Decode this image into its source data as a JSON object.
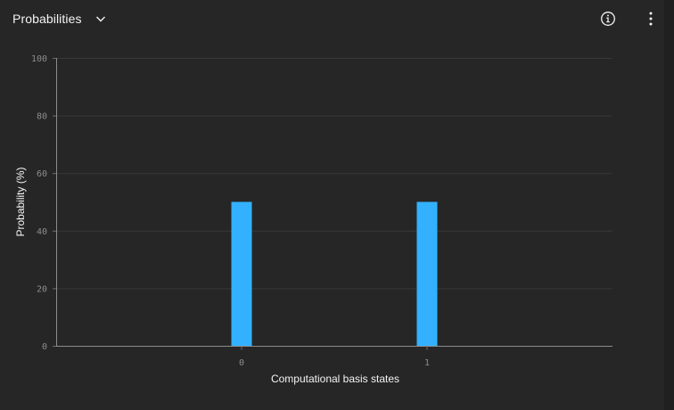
{
  "header": {
    "title": "Probabilities",
    "dropdown_icon": "chevron-down-icon",
    "info_icon": "information-icon",
    "menu_icon": "overflow-menu-vertical-icon"
  },
  "colors": {
    "background": "#262626",
    "bar": "#33b1ff",
    "grid": "#393939",
    "text": "#f4f4f4",
    "tick_text": "#8d8d8d"
  },
  "chart_data": {
    "type": "bar",
    "categories": [
      "0",
      "1"
    ],
    "values": [
      50,
      50
    ],
    "xlabel": "Computational basis states",
    "ylabel": "Probability (%)",
    "ylim": [
      0,
      100
    ],
    "yticks": [
      0,
      20,
      40,
      60,
      80,
      100
    ],
    "grid": true
  }
}
